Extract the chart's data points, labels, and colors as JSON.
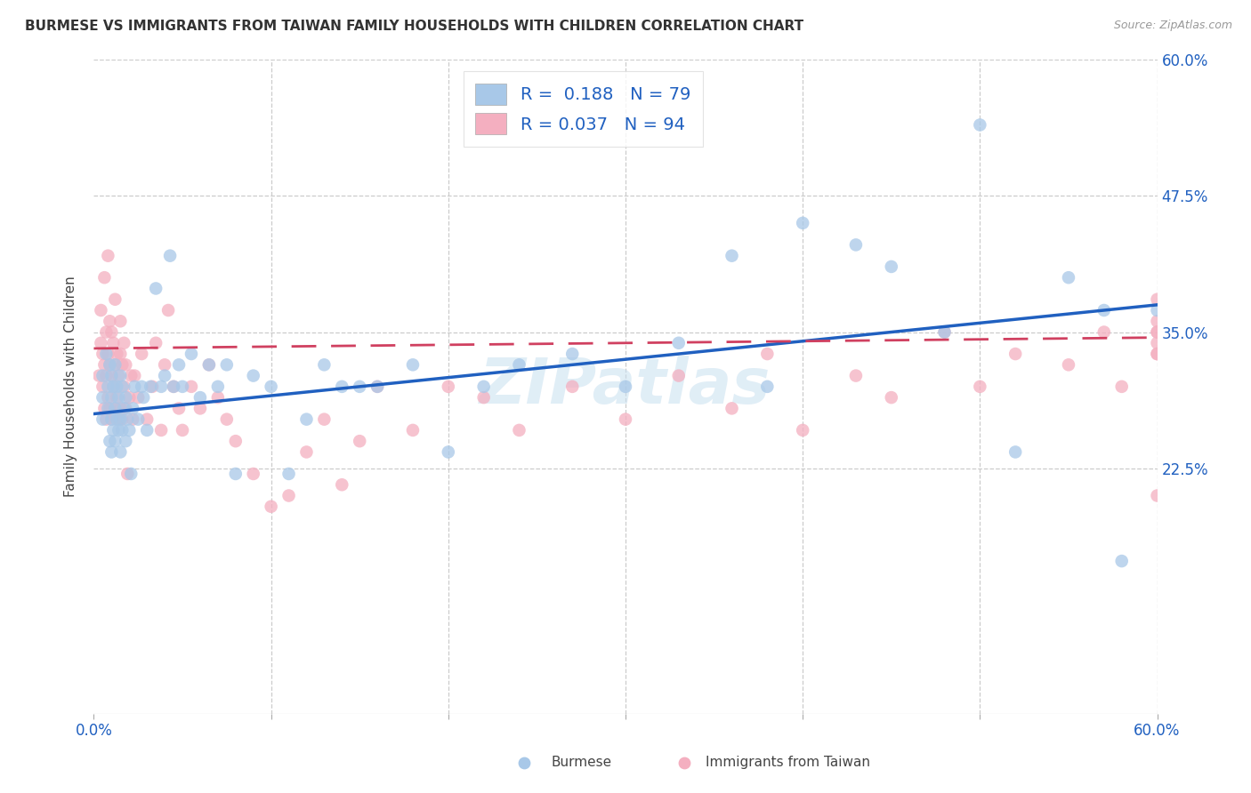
{
  "title": "BURMESE VS IMMIGRANTS FROM TAIWAN FAMILY HOUSEHOLDS WITH CHILDREN CORRELATION CHART",
  "source": "Source: ZipAtlas.com",
  "ylabel": "Family Households with Children",
  "x_min": 0.0,
  "x_max": 0.6,
  "y_min": 0.0,
  "y_max": 0.6,
  "burmese_R": 0.188,
  "burmese_N": 79,
  "taiwan_R": 0.037,
  "taiwan_N": 94,
  "burmese_color": "#a8c8e8",
  "taiwan_color": "#f4afc0",
  "burmese_line_color": "#2060c0",
  "taiwan_line_color": "#d04060",
  "watermark": "ZIPatlas",
  "burmese_line_x0": 0.0,
  "burmese_line_y0": 0.275,
  "burmese_line_x1": 0.6,
  "burmese_line_y1": 0.375,
  "taiwan_line_x0": 0.0,
  "taiwan_line_y0": 0.335,
  "taiwan_line_x1": 0.6,
  "taiwan_line_y1": 0.345,
  "burmese_x": [
    0.005,
    0.005,
    0.005,
    0.007,
    0.008,
    0.008,
    0.009,
    0.009,
    0.01,
    0.01,
    0.01,
    0.01,
    0.011,
    0.011,
    0.012,
    0.012,
    0.012,
    0.013,
    0.013,
    0.014,
    0.014,
    0.015,
    0.015,
    0.015,
    0.016,
    0.016,
    0.017,
    0.018,
    0.018,
    0.019,
    0.02,
    0.021,
    0.022,
    0.023,
    0.025,
    0.027,
    0.028,
    0.03,
    0.032,
    0.035,
    0.038,
    0.04,
    0.043,
    0.045,
    0.048,
    0.05,
    0.055,
    0.06,
    0.065,
    0.07,
    0.075,
    0.08,
    0.09,
    0.1,
    0.11,
    0.12,
    0.13,
    0.14,
    0.15,
    0.16,
    0.18,
    0.2,
    0.22,
    0.24,
    0.27,
    0.3,
    0.33,
    0.36,
    0.38,
    0.4,
    0.43,
    0.45,
    0.48,
    0.5,
    0.52,
    0.55,
    0.57,
    0.58,
    0.6
  ],
  "burmese_y": [
    0.27,
    0.29,
    0.31,
    0.33,
    0.28,
    0.3,
    0.25,
    0.32,
    0.24,
    0.27,
    0.29,
    0.31,
    0.26,
    0.3,
    0.25,
    0.28,
    0.32,
    0.27,
    0.3,
    0.26,
    0.29,
    0.24,
    0.27,
    0.31,
    0.26,
    0.3,
    0.28,
    0.25,
    0.29,
    0.27,
    0.26,
    0.22,
    0.28,
    0.3,
    0.27,
    0.3,
    0.29,
    0.26,
    0.3,
    0.39,
    0.3,
    0.31,
    0.42,
    0.3,
    0.32,
    0.3,
    0.33,
    0.29,
    0.32,
    0.3,
    0.32,
    0.22,
    0.31,
    0.3,
    0.22,
    0.27,
    0.32,
    0.3,
    0.3,
    0.3,
    0.32,
    0.24,
    0.3,
    0.32,
    0.33,
    0.3,
    0.34,
    0.42,
    0.3,
    0.45,
    0.43,
    0.41,
    0.35,
    0.54,
    0.24,
    0.4,
    0.37,
    0.14,
    0.37
  ],
  "taiwan_x": [
    0.003,
    0.004,
    0.004,
    0.005,
    0.005,
    0.006,
    0.006,
    0.006,
    0.007,
    0.007,
    0.007,
    0.008,
    0.008,
    0.008,
    0.009,
    0.009,
    0.009,
    0.01,
    0.01,
    0.01,
    0.011,
    0.011,
    0.012,
    0.012,
    0.012,
    0.013,
    0.013,
    0.014,
    0.014,
    0.015,
    0.015,
    0.015,
    0.016,
    0.016,
    0.017,
    0.017,
    0.018,
    0.018,
    0.019,
    0.02,
    0.021,
    0.022,
    0.023,
    0.025,
    0.027,
    0.03,
    0.033,
    0.035,
    0.038,
    0.04,
    0.042,
    0.045,
    0.048,
    0.05,
    0.055,
    0.06,
    0.065,
    0.07,
    0.075,
    0.08,
    0.09,
    0.1,
    0.11,
    0.12,
    0.13,
    0.14,
    0.15,
    0.16,
    0.18,
    0.2,
    0.22,
    0.24,
    0.27,
    0.3,
    0.33,
    0.36,
    0.38,
    0.4,
    0.43,
    0.45,
    0.48,
    0.5,
    0.52,
    0.55,
    0.57,
    0.58,
    0.6,
    0.6,
    0.6,
    0.6,
    0.6,
    0.6,
    0.6,
    0.6
  ],
  "taiwan_y": [
    0.31,
    0.34,
    0.37,
    0.3,
    0.33,
    0.28,
    0.32,
    0.4,
    0.27,
    0.31,
    0.35,
    0.29,
    0.33,
    0.42,
    0.28,
    0.32,
    0.36,
    0.27,
    0.31,
    0.35,
    0.3,
    0.34,
    0.28,
    0.32,
    0.38,
    0.29,
    0.33,
    0.27,
    0.31,
    0.28,
    0.33,
    0.36,
    0.27,
    0.32,
    0.3,
    0.34,
    0.28,
    0.32,
    0.22,
    0.29,
    0.31,
    0.27,
    0.31,
    0.29,
    0.33,
    0.27,
    0.3,
    0.34,
    0.26,
    0.32,
    0.37,
    0.3,
    0.28,
    0.26,
    0.3,
    0.28,
    0.32,
    0.29,
    0.27,
    0.25,
    0.22,
    0.19,
    0.2,
    0.24,
    0.27,
    0.21,
    0.25,
    0.3,
    0.26,
    0.3,
    0.29,
    0.26,
    0.3,
    0.27,
    0.31,
    0.28,
    0.33,
    0.26,
    0.31,
    0.29,
    0.35,
    0.3,
    0.33,
    0.32,
    0.35,
    0.3,
    0.33,
    0.35,
    0.36,
    0.33,
    0.38,
    0.34,
    0.35,
    0.2
  ]
}
